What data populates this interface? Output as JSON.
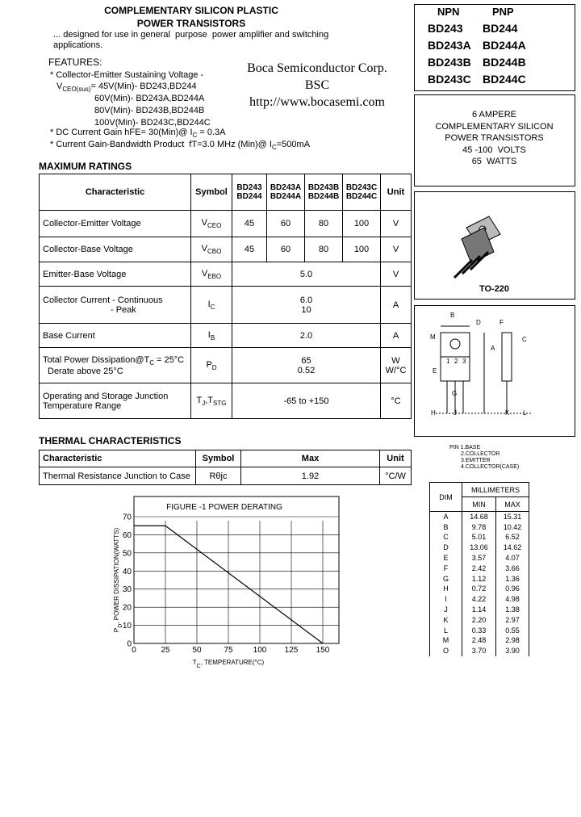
{
  "header": {
    "title": [
      "COMPLEMENTARY SILICON PLASTIC",
      "POWER TRANSISTORS"
    ],
    "description": [
      "... designed for use in general  purpose  power amplifier and switching",
      "applications."
    ]
  },
  "company": {
    "name": "Boca Semiconductor Corp.",
    "abbr": "BSC",
    "url": "http://www.bocasemi.com"
  },
  "features": {
    "heading": "FEATURES:",
    "lines": [
      "* Collector-Emitter Sustaining Voltage -",
      [
        "V",
        {
          "sub": "CEO(sus)"
        },
        "= 45V(Min)- BD243,BD244"
      ],
      "60V(Min)- BD243A,BD244A",
      "80V(Min)- BD243B,BD244B",
      "100V(Min)- BD243C,BD244C",
      [
        "* DC Current Gain hFE= 30(Min)@ I",
        {
          "sub": "C"
        },
        " = 0.3A"
      ],
      [
        "* Current Gain-Bandwidth Product  fT=3.0 MHz (Min)@ I",
        {
          "sub": "C"
        },
        "=500mA"
      ]
    ]
  },
  "part_numbers": {
    "headers": [
      "NPN",
      "PNP"
    ],
    "rows": [
      [
        "BD243",
        "BD244"
      ],
      [
        "BD243A",
        "BD244A"
      ],
      [
        "BD243B",
        "BD244B"
      ],
      [
        "BD243C",
        "BD244C"
      ]
    ]
  },
  "summary": [
    "6 AMPERE",
    "COMPLEMENTARY SILICON",
    "POWER TRANSISTORS",
    "45 -100  VOLTS",
    "65  WATTS"
  ],
  "package": {
    "name": "TO-220"
  },
  "outline": {
    "labels": [
      "B",
      "D",
      "F",
      "M",
      "C",
      "A",
      "E",
      "1",
      "2",
      "3",
      "G",
      "H",
      "J",
      "K",
      "L"
    ],
    "pins": [
      "PIN 1.BASE",
      "2.COLLECTOR",
      "3.EMITTER",
      "4.COLLECTOR(CASE)"
    ]
  },
  "dimensions": {
    "headers": {
      "dim": "DIM",
      "unit": "MILLIMETERS",
      "min": "MIN",
      "max": "MAX"
    },
    "rows": [
      [
        "A",
        "14.68",
        "15.31"
      ],
      [
        "B",
        "9.78",
        "10.42"
      ],
      [
        "C",
        "5.01",
        "6.52"
      ],
      [
        "D",
        "13.06",
        "14.62"
      ],
      [
        "E",
        "3.57",
        "4.07"
      ],
      [
        "F",
        "2.42",
        "3.66"
      ],
      [
        "G",
        "1.12",
        "1.36"
      ],
      [
        "H",
        "0.72",
        "0.96"
      ],
      [
        "I",
        "4.22",
        "4.98"
      ],
      [
        "J",
        "1.14",
        "1.38"
      ],
      [
        "K",
        "2.20",
        "2.97"
      ],
      [
        "L",
        "0.33",
        "0.55"
      ],
      [
        "M",
        "2.48",
        "2.98"
      ],
      [
        "O",
        "3.70",
        "3.90"
      ]
    ]
  },
  "max_ratings": {
    "heading": "MAXIMUM RATINGS",
    "columns": [
      [
        "Characteristic"
      ],
      [
        "Symbol"
      ],
      [
        "BD243",
        "BD244"
      ],
      [
        "BD243A",
        "BD244A"
      ],
      [
        "BD243B",
        "BD244B"
      ],
      [
        "BD243C",
        "BD244C"
      ],
      [
        "Unit"
      ]
    ],
    "rows": [
      {
        "characteristic": [
          "Collector-Emitter Voltage"
        ],
        "symbol": [
          [
            "V",
            {
              "sub": "CEO"
            }
          ]
        ],
        "values": [
          [
            "45"
          ],
          [
            "60"
          ],
          [
            "80"
          ],
          [
            "100"
          ]
        ],
        "unit": [
          "V"
        ]
      },
      {
        "characteristic": [
          "Collector-Base Voltage"
        ],
        "symbol": [
          [
            "V",
            {
              "sub": "CBO"
            }
          ]
        ],
        "values": [
          [
            "45"
          ],
          [
            "60"
          ],
          [
            "80"
          ],
          [
            "100"
          ]
        ],
        "unit": [
          "V"
        ]
      },
      {
        "characteristic": [
          "Emitter-Base Voltage"
        ],
        "symbol": [
          [
            "V",
            {
              "sub": "EBO"
            }
          ]
        ],
        "values": [
          [
            "5.0"
          ]
        ],
        "unit": [
          "V"
        ]
      },
      {
        "characteristic": [
          "Collector Current - Continuous",
          "- Peak"
        ],
        "symbol": [
          [
            "I",
            {
              "sub": "C"
            }
          ]
        ],
        "values": [
          [
            "6.0",
            "10"
          ]
        ],
        "unit": [
          "A"
        ]
      },
      {
        "characteristic": [
          "Base Current"
        ],
        "symbol": [
          [
            "I",
            {
              "sub": "B"
            }
          ]
        ],
        "values": [
          [
            "2.0"
          ]
        ],
        "unit": [
          "A"
        ]
      },
      {
        "characteristic": [
          [
            "Total Power Dissipation@T",
            {
              "sub": "C"
            },
            " = 25°C"
          ],
          "Derate above 25°C"
        ],
        "symbol": [
          [
            "P",
            {
              "sub": "D"
            }
          ]
        ],
        "values": [
          [
            "65",
            "0.52"
          ]
        ],
        "unit": [
          "W",
          "W/°C"
        ]
      },
      {
        "characteristic": [
          "Operating and Storage Junction",
          "Temperature Range"
        ],
        "symbol": [
          [
            "T",
            {
              "sub": "J"
            },
            ",T",
            {
              "sub": "STG"
            }
          ]
        ],
        "values": [
          [
            "-65 to +150"
          ]
        ],
        "unit": [
          "°C"
        ]
      }
    ]
  },
  "thermal": {
    "heading": "THERMAL CHARACTERISTICS",
    "columns": [
      "Characteristic",
      "Symbol",
      "Max",
      "Unit"
    ],
    "rows": [
      [
        "Thermal Resistance Junction to Case",
        "Rθjc",
        "1.92",
        "°C/W"
      ]
    ]
  },
  "chart_data": {
    "type": "line",
    "title": "FIGURE -1 POWER DERATING",
    "xlabel": [
      "T",
      {
        "sub": "C"
      },
      ", TEMPERATURE(°C)"
    ],
    "ylabel": [
      "P",
      {
        "sub": "D"
      },
      ", POWER DISSIPATION(WATTS)"
    ],
    "x": [
      0,
      25,
      150
    ],
    "series": [
      {
        "color": "#000000",
        "values": [
          65,
          65,
          0
        ]
      }
    ],
    "xlim": [
      0,
      150
    ],
    "ylim": [
      0,
      70
    ],
    "xticks": [
      0,
      25,
      50,
      75,
      100,
      125,
      150
    ],
    "yticks": [
      0,
      10,
      20,
      30,
      40,
      50,
      60,
      70
    ],
    "grid": true
  }
}
